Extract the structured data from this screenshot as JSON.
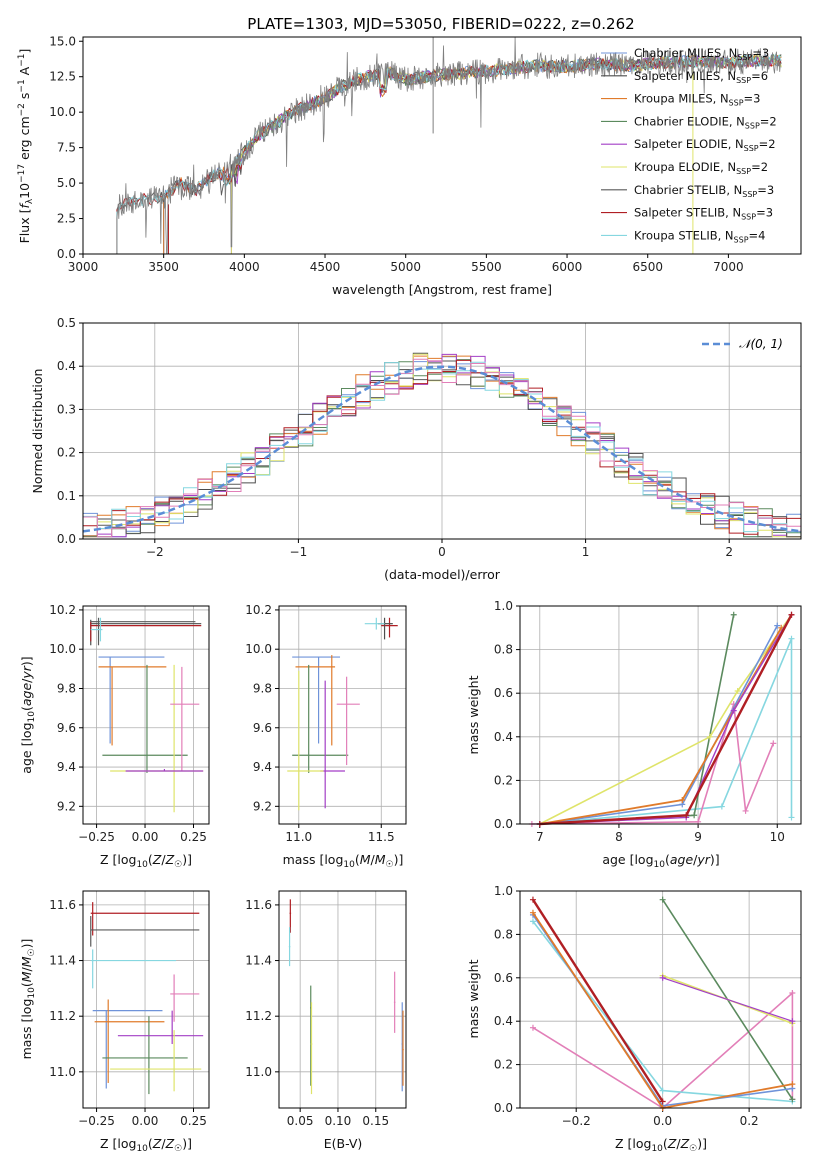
{
  "figure_title": "PLATE=1303, MJD=53050, FIBERID=0222, z=0.262",
  "colors": {
    "cm": "#6f93d9",
    "sm": "#4c4c4c",
    "km": "#e07b2b",
    "ce": "#5b8a5e",
    "se": "#a33fc6",
    "ke": "#dfe46a",
    "cs": "#5a5a5a",
    "ss": "#b01f24",
    "ks": "#86d7e0",
    "pink": "#e27fb8",
    "grey": "#7f7f7f",
    "dash": "#5b8dd6"
  },
  "chart_data": [
    {
      "type": "line",
      "id": "spectrum",
      "title": "PLATE=1303, MJD=53050, FIBERID=0222, z=0.262",
      "xlabel": "wavelength [Angstrom, rest frame]",
      "ylabel": "Flux [f_λ 10⁻¹⁷ erg cm⁻² s⁻¹ A⁻¹]",
      "xlim": [
        3000,
        7450
      ],
      "ylim": [
        0,
        15.3
      ],
      "xticks": [
        "3000",
        "3500",
        "4000",
        "4500",
        "5000",
        "5500",
        "6000",
        "6500",
        "7000"
      ],
      "yticks": [
        "0.0",
        "2.5",
        "5.0",
        "7.5",
        "10.0",
        "12.5",
        "15.0"
      ],
      "continuum": {
        "x": [
          3210,
          3300,
          3400,
          3500,
          3600,
          3700,
          3800,
          3900,
          4000,
          4100,
          4200,
          4300,
          4400,
          4500,
          4600,
          4700,
          4800,
          4900,
          5000,
          5200,
          5400,
          5600,
          5800,
          6000,
          6200,
          6400,
          6600,
          6800,
          7000,
          7200,
          7330
        ],
        "y": [
          3.3,
          3.6,
          3.9,
          4.0,
          5.0,
          4.5,
          5.5,
          6.0,
          7.2,
          8.5,
          9.2,
          10.0,
          10.5,
          11.0,
          11.8,
          12.3,
          12.6,
          12.8,
          12.3,
          12.6,
          12.8,
          13.0,
          13.3,
          13.2,
          13.4,
          13.3,
          13.5,
          13.6,
          13.5,
          13.7,
          13.6
        ]
      },
      "legend_position": "upper-right",
      "legend": [
        {
          "text": "Chabrier MILES, N",
          "sub": "SSP",
          "tail": "=3"
        },
        {
          "text": "Salpeter MILES, N",
          "sub": "SSP",
          "tail": "=6"
        },
        {
          "text": "Kroupa MILES, N",
          "sub": "SSP",
          "tail": "=3"
        },
        {
          "text": "Chabrier ELODIE, N",
          "sub": "SSP",
          "tail": "=2"
        },
        {
          "text": "Salpeter ELODIE, N",
          "sub": "SSP",
          "tail": "=2"
        },
        {
          "text": "Kroupa ELODIE, N",
          "sub": "SSP",
          "tail": "=2"
        },
        {
          "text": "Chabrier STELIB, N",
          "sub": "SSP",
          "tail": "=3"
        },
        {
          "text": "Salpeter STELIB, N",
          "sub": "SSP",
          "tail": "=3"
        },
        {
          "text": "Kroupa STELIB, N",
          "sub": "SSP",
          "tail": "=4"
        }
      ]
    },
    {
      "type": "histogram",
      "id": "residuals",
      "xlabel": "(data-model)/error",
      "ylabel": "Normed distribution",
      "xlim": [
        -2.5,
        2.5
      ],
      "ylim": [
        0,
        0.5
      ],
      "xticks": [
        "−2",
        "−1",
        "0",
        "1",
        "2"
      ],
      "yticks": [
        "0.0",
        "0.1",
        "0.2",
        "0.3",
        "0.4",
        "0.5"
      ],
      "legend": "𝒩(0, 1)",
      "legend_position": "upper-right",
      "grid": true
    },
    {
      "type": "scatter",
      "id": "age-vs-z",
      "xlabel": "Z [log₁₀(Z/Z☉)]",
      "ylabel": "age  [log₁₀(age/yr)]",
      "xlim": [
        -0.32,
        0.33
      ],
      "ylim": [
        9.11,
        10.22
      ],
      "xticks": [
        "−0.25",
        "0.00",
        "0.25"
      ],
      "yticks": [
        "9.2",
        "9.4",
        "9.6",
        "9.8",
        "10.0",
        "10.2"
      ],
      "grid": true
    },
    {
      "type": "scatter",
      "id": "age-vs-mass",
      "xlabel": "mass [log₁₀(M/M☉)]",
      "xlim": [
        10.88,
        11.65
      ],
      "ylim": [
        9.11,
        10.22
      ],
      "xticks": [
        "11.0",
        "11.5"
      ],
      "yticks": [
        "9.2",
        "9.4",
        "9.6",
        "9.8",
        "10.0",
        "10.2"
      ],
      "grid": true
    },
    {
      "type": "line",
      "id": "weight-vs-age",
      "xlabel": "age  [log₁₀(age/yr)]",
      "ylabel": "mass weight",
      "xlim": [
        6.75,
        10.3
      ],
      "ylim": [
        0,
        1.0
      ],
      "xticks": [
        "7",
        "8",
        "9",
        "10"
      ],
      "yticks": [
        "0.0",
        "0.2",
        "0.4",
        "0.6",
        "0.8",
        "1.0"
      ],
      "grid": true
    },
    {
      "type": "scatter",
      "id": "mass-vs-z",
      "xlabel": "Z [log₁₀(Z/Z☉)]",
      "ylabel": "mass [log₁₀(M/M☉)]",
      "xlim": [
        -0.32,
        0.33
      ],
      "ylim": [
        10.87,
        11.65
      ],
      "xticks": [
        "−0.25",
        "0.00",
        "0.25"
      ],
      "yticks": [
        "11.0",
        "11.2",
        "11.4",
        "11.6"
      ],
      "grid": true
    },
    {
      "type": "scatter",
      "id": "mass-vs-ebv",
      "xlabel": "E(B-V)",
      "xlim": [
        0.022,
        0.19
      ],
      "ylim": [
        10.87,
        11.65
      ],
      "xticks": [
        "0.05",
        "0.10",
        "0.15"
      ],
      "yticks": [
        "11.0",
        "11.2",
        "11.4",
        "11.6"
      ],
      "grid": true
    },
    {
      "type": "line",
      "id": "weight-vs-z",
      "xlabel": "Z [log₁₀(Z/Z☉)]",
      "ylabel": "mass weight",
      "xlim": [
        -0.33,
        0.32
      ],
      "ylim": [
        0,
        1.0
      ],
      "xticks": [
        "−0.2",
        "0.0",
        "0.2"
      ],
      "yticks": [
        "0.0",
        "0.2",
        "0.4",
        "0.6",
        "0.8",
        "1.0"
      ],
      "grid": true
    }
  ]
}
